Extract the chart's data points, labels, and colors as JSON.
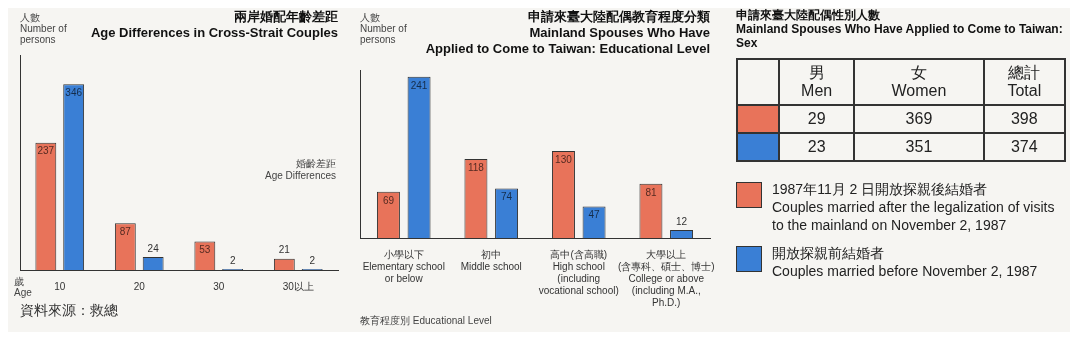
{
  "chart_data": [
    {
      "type": "bar",
      "title": "兩岸婚配年齡差距\nAge Differences in Cross-Strait Couples",
      "ylabel": "人數\nNumber of persons",
      "xlabel": "婚齡差距\nAge Differences",
      "categories": [
        "10",
        "20",
        "30",
        "30以上"
      ],
      "series": [
        {
          "color": "#e8735a",
          "values": [
            237,
            87,
            53,
            21
          ]
        },
        {
          "color": "#3a7fd5",
          "values": [
            346,
            24,
            2,
            2
          ]
        }
      ],
      "data_labels": true,
      "annotations": [
        "歲\nAge",
        "資料來源：救總"
      ]
    },
    {
      "type": "bar",
      "title": "申請來臺大陸配偶教育程度分類\nMainland Spouses Who Have\nApplied to Come to Taiwan: Educational Level",
      "ylabel": "人數\nNumber of persons",
      "xlabel": "教育程度別 Educational Level",
      "categories": [
        "小學以下\nElementary school or below",
        "初中\nMiddle school",
        "高中(含高職)\nHigh school\n(including\nvocational school)",
        "大學以上\n(含專科、碩士、博士)\nCollege or above\n(including M.A., Ph.D.)"
      ],
      "series": [
        {
          "color": "#e8735a",
          "values": [
            69,
            118,
            130,
            81
          ]
        },
        {
          "color": "#3a7fd5",
          "values": [
            241,
            74,
            47,
            12
          ]
        }
      ],
      "data_labels": true
    },
    {
      "type": "other",
      "title": "申請來臺大陸配偶性別人數\nMainland Spouses Who Have Applied to Come to Taiwan: Sex",
      "categories": [
        "男\nMen",
        "女\nWomen",
        "總計\nTotal"
      ],
      "series": [
        {
          "name": "1987年11月 2 日開放探親後結婚者\nCouples married after the legalization of visits to the mainland on November 2, 1987",
          "color": "#e8735a",
          "values": [
            29,
            369,
            398
          ]
        },
        {
          "name": "開放探親前結婚者\nCouples married before November 2, 1987",
          "color": "#3a7fd5",
          "values": [
            23,
            351,
            374
          ]
        }
      ],
      "data_labels": true,
      "legend": "bottom"
    }
  ]
}
